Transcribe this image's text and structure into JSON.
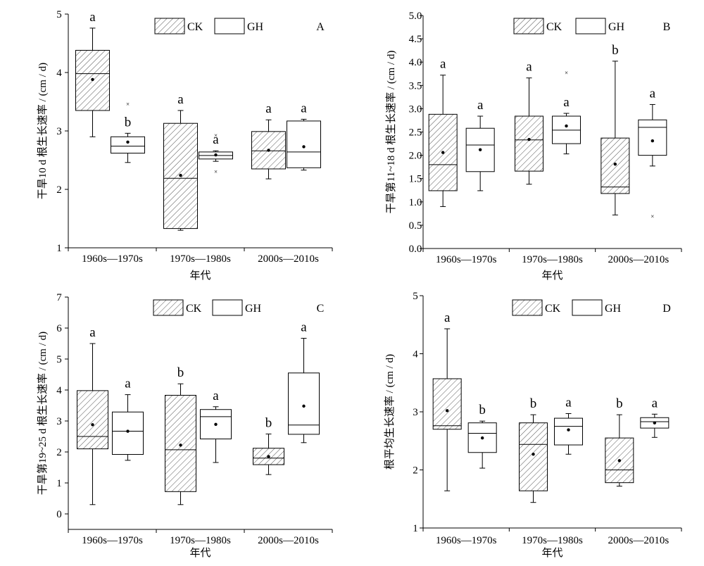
{
  "figure": {
    "legend": {
      "ck": "CK",
      "gh": "GH"
    },
    "xlabel": "年代"
  },
  "chart_data": [
    {
      "type": "box",
      "panel": "A",
      "ylabel": "干旱10 d 根生长速率 / (cm / d)",
      "xlabel": "年代",
      "ylim": [
        1,
        5
      ],
      "yticks": [
        1,
        2,
        3,
        4,
        5
      ],
      "categories": [
        "1960s—1970s",
        "1970s—1980s",
        "2000s—2010s"
      ],
      "series": [
        {
          "name": "CK",
          "hatch": true,
          "boxes": [
            {
              "min": 2.9,
              "q1": 3.35,
              "median": 3.98,
              "q3": 4.38,
              "max": 4.76,
              "mean": 3.88,
              "outliers": [],
              "letter": "a"
            },
            {
              "min": 1.3,
              "q1": 1.33,
              "median": 2.19,
              "q3": 3.13,
              "max": 3.35,
              "mean": 2.24,
              "outliers": [],
              "letter": "a"
            },
            {
              "min": 2.18,
              "q1": 2.35,
              "median": 2.66,
              "q3": 2.99,
              "max": 3.19,
              "mean": 2.67,
              "outliers": [],
              "letter": "a"
            }
          ]
        },
        {
          "name": "GH",
          "hatch": false,
          "boxes": [
            {
              "min": 2.46,
              "q1": 2.62,
              "median": 2.74,
              "q3": 2.9,
              "max": 2.96,
              "mean": 2.81,
              "outliers": [
                3.46
              ],
              "letter": "b"
            },
            {
              "min": 2.48,
              "q1": 2.52,
              "median": 2.58,
              "q3": 2.64,
              "max": 2.66,
              "mean": 2.59,
              "outliers": [
                2.92,
                2.3
              ],
              "letter": "a"
            },
            {
              "min": 2.33,
              "q1": 2.37,
              "median": 2.64,
              "q3": 3.17,
              "max": 3.2,
              "mean": 2.73,
              "outliers": [],
              "letter": "a"
            }
          ]
        }
      ]
    },
    {
      "type": "box",
      "panel": "B",
      "ylabel": "干旱第11~18 d 根生长速率 / (cm / d)",
      "xlabel": "年代",
      "ylim": [
        0,
        5
      ],
      "yticks": [
        0,
        0.5,
        1,
        1.5,
        2,
        2.5,
        3,
        3.5,
        4,
        4.5,
        5
      ],
      "ytick_labels": [
        "0.0",
        "0.5",
        "1.0",
        "1.5",
        "2.0",
        "2.5",
        "3.0",
        "3.5",
        "4.0",
        "4.5",
        "5.0"
      ],
      "categories": [
        "1960s—1970s",
        "1970s—1980s",
        "2000s—2010s"
      ],
      "series": [
        {
          "name": "CK",
          "hatch": true,
          "boxes": [
            {
              "min": 0.9,
              "q1": 1.24,
              "median": 1.8,
              "q3": 2.88,
              "max": 3.72,
              "mean": 2.06,
              "outliers": [],
              "letter": "a"
            },
            {
              "min": 1.38,
              "q1": 1.66,
              "median": 2.33,
              "q3": 2.84,
              "max": 3.66,
              "mean": 2.34,
              "outliers": [],
              "letter": "a"
            },
            {
              "min": 0.72,
              "q1": 1.18,
              "median": 1.32,
              "q3": 2.37,
              "max": 4.02,
              "mean": 1.81,
              "outliers": [],
              "letter": "b"
            }
          ]
        },
        {
          "name": "GH",
          "hatch": false,
          "boxes": [
            {
              "min": 1.24,
              "q1": 1.65,
              "median": 2.22,
              "q3": 2.58,
              "max": 2.84,
              "mean": 2.12,
              "outliers": [],
              "letter": "a"
            },
            {
              "min": 2.03,
              "q1": 2.25,
              "median": 2.54,
              "q3": 2.84,
              "max": 2.9,
              "mean": 2.63,
              "outliers": [
                3.77
              ],
              "letter": "a"
            },
            {
              "min": 1.77,
              "q1": 2.0,
              "median": 2.6,
              "q3": 2.76,
              "max": 3.09,
              "mean": 2.31,
              "outliers": [
                0.69
              ],
              "letter": "a"
            }
          ]
        }
      ]
    },
    {
      "type": "box",
      "panel": "C",
      "ylabel": "干旱第19~25 d 根生长速率 / (cm / d)",
      "xlabel": "年代",
      "ylim": [
        -0.5,
        7
      ],
      "yticks": [
        0,
        1,
        2,
        3,
        4,
        5,
        6,
        7
      ],
      "categories": [
        "1960s—1970s",
        "1970s—1980s",
        "2000s—2010s"
      ],
      "series": [
        {
          "name": "CK",
          "hatch": true,
          "boxes": [
            {
              "min": 0.3,
              "q1": 2.1,
              "median": 2.5,
              "q3": 3.98,
              "max": 5.5,
              "mean": 2.88,
              "outliers": [],
              "letter": "a"
            },
            {
              "min": 0.3,
              "q1": 0.72,
              "median": 2.07,
              "q3": 3.83,
              "max": 4.2,
              "mean": 2.22,
              "outliers": [],
              "letter": "b"
            },
            {
              "min": 1.27,
              "q1": 1.59,
              "median": 1.8,
              "q3": 2.12,
              "max": 2.58,
              "mean": 1.85,
              "outliers": [],
              "letter": "b"
            }
          ]
        },
        {
          "name": "GH",
          "hatch": false,
          "boxes": [
            {
              "min": 1.73,
              "q1": 1.92,
              "median": 2.67,
              "q3": 3.29,
              "max": 3.85,
              "mean": 2.67,
              "outliers": [],
              "letter": "a"
            },
            {
              "min": 1.66,
              "q1": 2.42,
              "median": 3.14,
              "q3": 3.37,
              "max": 3.46,
              "mean": 2.89,
              "outliers": [],
              "letter": "a"
            },
            {
              "min": 2.3,
              "q1": 2.57,
              "median": 2.87,
              "q3": 4.55,
              "max": 5.67,
              "mean": 3.48,
              "outliers": [],
              "letter": "a"
            }
          ]
        }
      ]
    },
    {
      "type": "box",
      "panel": "D",
      "ylabel": "根平均生长速率 / (cm / d)",
      "xlabel": "年代",
      "ylim": [
        1,
        5
      ],
      "yticks": [
        1,
        2,
        3,
        4,
        5
      ],
      "categories": [
        "1960s—1970s",
        "1970s—1980s",
        "2000s—2010s"
      ],
      "series": [
        {
          "name": "CK",
          "hatch": true,
          "boxes": [
            {
              "min": 1.64,
              "q1": 2.7,
              "median": 2.76,
              "q3": 3.57,
              "max": 4.43,
              "mean": 3.02,
              "outliers": [],
              "letter": "a"
            },
            {
              "min": 1.44,
              "q1": 1.64,
              "median": 2.44,
              "q3": 2.81,
              "max": 2.95,
              "mean": 2.27,
              "outliers": [],
              "letter": "b"
            },
            {
              "min": 1.72,
              "q1": 1.78,
              "median": 2.0,
              "q3": 2.55,
              "max": 2.95,
              "mean": 2.16,
              "outliers": [],
              "letter": "b"
            }
          ]
        },
        {
          "name": "GH",
          "hatch": false,
          "boxes": [
            {
              "min": 2.03,
              "q1": 2.3,
              "median": 2.63,
              "q3": 2.81,
              "max": 2.84,
              "mean": 2.55,
              "outliers": [],
              "letter": "b"
            },
            {
              "min": 2.27,
              "q1": 2.43,
              "median": 2.75,
              "q3": 2.89,
              "max": 2.97,
              "mean": 2.69,
              "outliers": [],
              "letter": "a"
            },
            {
              "min": 2.56,
              "q1": 2.72,
              "median": 2.83,
              "q3": 2.9,
              "max": 2.96,
              "mean": 2.81,
              "outliers": [],
              "letter": "a"
            }
          ]
        }
      ]
    }
  ]
}
